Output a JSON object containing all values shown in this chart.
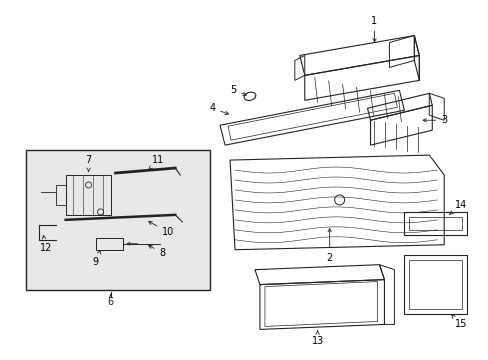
{
  "background_color": "#ffffff",
  "line_color": "#222222",
  "label_color": "#000000",
  "box_bg": "#e8e8e8",
  "figsize": [
    4.89,
    3.6
  ],
  "dpi": 100
}
